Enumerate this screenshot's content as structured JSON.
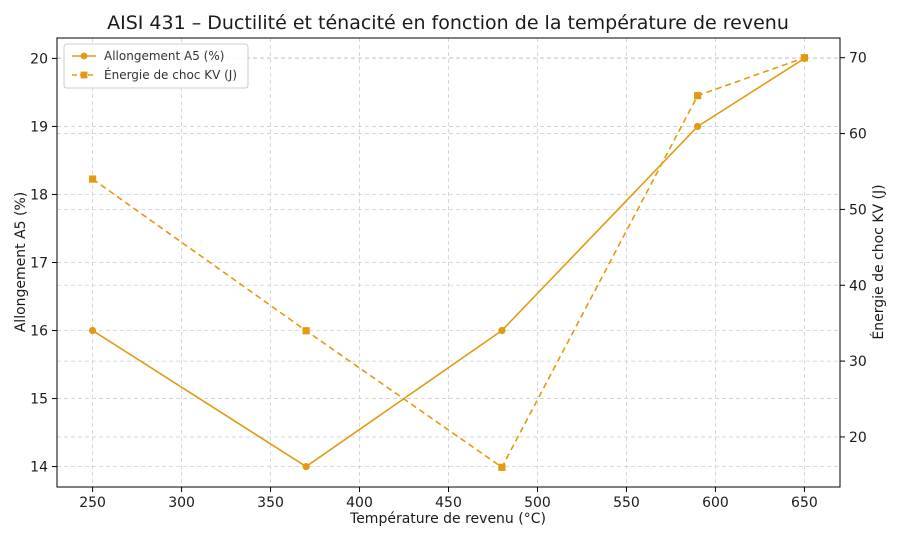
{
  "chart_data": {
    "type": "line",
    "title": "AISI 431 – Ductilité et ténacité en fonction de la température de revenu",
    "xlabel": "Température de revenu (°C)",
    "ylabel": "Allongement A5 (%)",
    "y2label": "Énergie de choc KV (J)",
    "x": [
      250,
      370,
      480,
      590,
      650
    ],
    "xlim": [
      230,
      670
    ],
    "xticks": [
      250,
      300,
      350,
      400,
      450,
      500,
      550,
      600,
      650
    ],
    "ylim": [
      13.7,
      20.3
    ],
    "yticks": [
      14,
      15,
      16,
      17,
      18,
      19,
      20
    ],
    "y2lim": [
      13.4,
      72.6
    ],
    "y2ticks": [
      20,
      30,
      40,
      50,
      60,
      70
    ],
    "grid": true,
    "legend_position": "top-left",
    "color": "#E29A12",
    "series": [
      {
        "name": "Allongement A5 (%)",
        "axis": "left",
        "style": "solid",
        "marker": "circle",
        "values": [
          16,
          14,
          16,
          19,
          20
        ]
      },
      {
        "name": "Énergie de choc KV (J)",
        "axis": "right",
        "style": "dashed",
        "marker": "square",
        "values": [
          54,
          34,
          16,
          65,
          70
        ]
      }
    ]
  }
}
